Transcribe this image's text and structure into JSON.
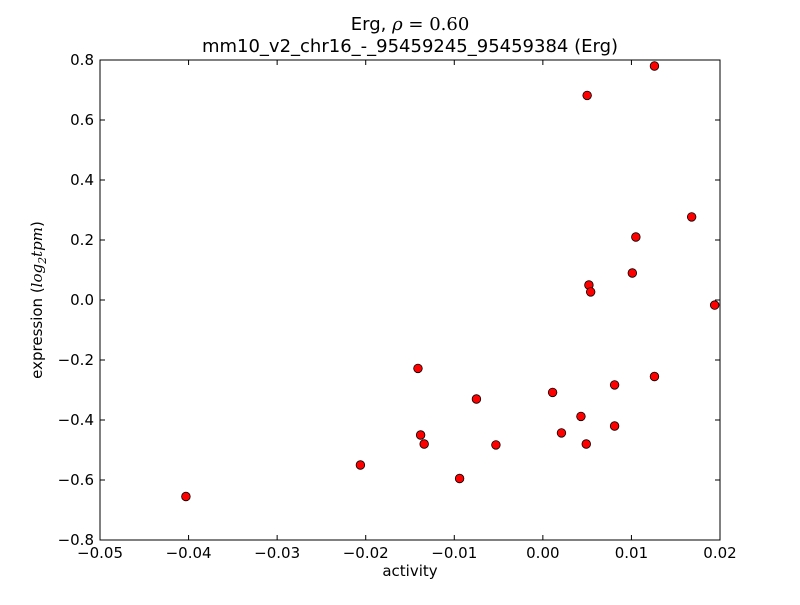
{
  "chart_data": {
    "type": "scatter",
    "title_line1": {
      "prefix": "Erg, ",
      "rho_symbol": "ρ",
      "equals": " = ",
      "value": "0.60"
    },
    "title_line2": "mm10_v2_chr16_-_95459245_95459384 (Erg)",
    "xlabel": "activity",
    "ylabel": {
      "prefix": "expression (",
      "log": "log",
      "sub": "2",
      "tpm": "tpm",
      "suffix": ")"
    },
    "xlim": [
      -0.05,
      0.02
    ],
    "ylim": [
      -0.8,
      0.8
    ],
    "xticks": [
      -0.05,
      -0.04,
      -0.03,
      -0.02,
      -0.01,
      0.0,
      0.01,
      0.02
    ],
    "xtick_labels": [
      "−0.05",
      "−0.04",
      "−0.03",
      "−0.02",
      "−0.01",
      "0.00",
      "0.01",
      "0.02"
    ],
    "yticks": [
      -0.8,
      -0.6,
      -0.4,
      -0.2,
      0.0,
      0.2,
      0.4,
      0.6,
      0.8
    ],
    "ytick_labels": [
      "−0.8",
      "−0.6",
      "−0.4",
      "−0.2",
      "0.0",
      "0.2",
      "0.4",
      "0.6",
      "0.8"
    ],
    "grid": false,
    "marker_color": "#ff0000",
    "marker_edge_color": "#000000",
    "points": [
      {
        "x": -0.0403,
        "y": -0.655
      },
      {
        "x": -0.0206,
        "y": -0.55
      },
      {
        "x": -0.0141,
        "y": -0.228
      },
      {
        "x": -0.0138,
        "y": -0.45
      },
      {
        "x": -0.0134,
        "y": -0.48
      },
      {
        "x": -0.0094,
        "y": -0.595
      },
      {
        "x": -0.0075,
        "y": -0.33
      },
      {
        "x": -0.0053,
        "y": -0.483
      },
      {
        "x": 0.0011,
        "y": -0.308
      },
      {
        "x": 0.0021,
        "y": -0.443
      },
      {
        "x": 0.0043,
        "y": -0.388
      },
      {
        "x": 0.0049,
        "y": -0.48
      },
      {
        "x": 0.005,
        "y": 0.682
      },
      {
        "x": 0.0052,
        "y": 0.05
      },
      {
        "x": 0.0054,
        "y": 0.027
      },
      {
        "x": 0.0081,
        "y": -0.283
      },
      {
        "x": 0.0081,
        "y": -0.42
      },
      {
        "x": 0.0101,
        "y": 0.09
      },
      {
        "x": 0.0105,
        "y": 0.21
      },
      {
        "x": 0.0126,
        "y": 0.78
      },
      {
        "x": 0.0126,
        "y": -0.255
      },
      {
        "x": 0.0168,
        "y": 0.277
      },
      {
        "x": 0.0194,
        "y": -0.017
      }
    ]
  }
}
